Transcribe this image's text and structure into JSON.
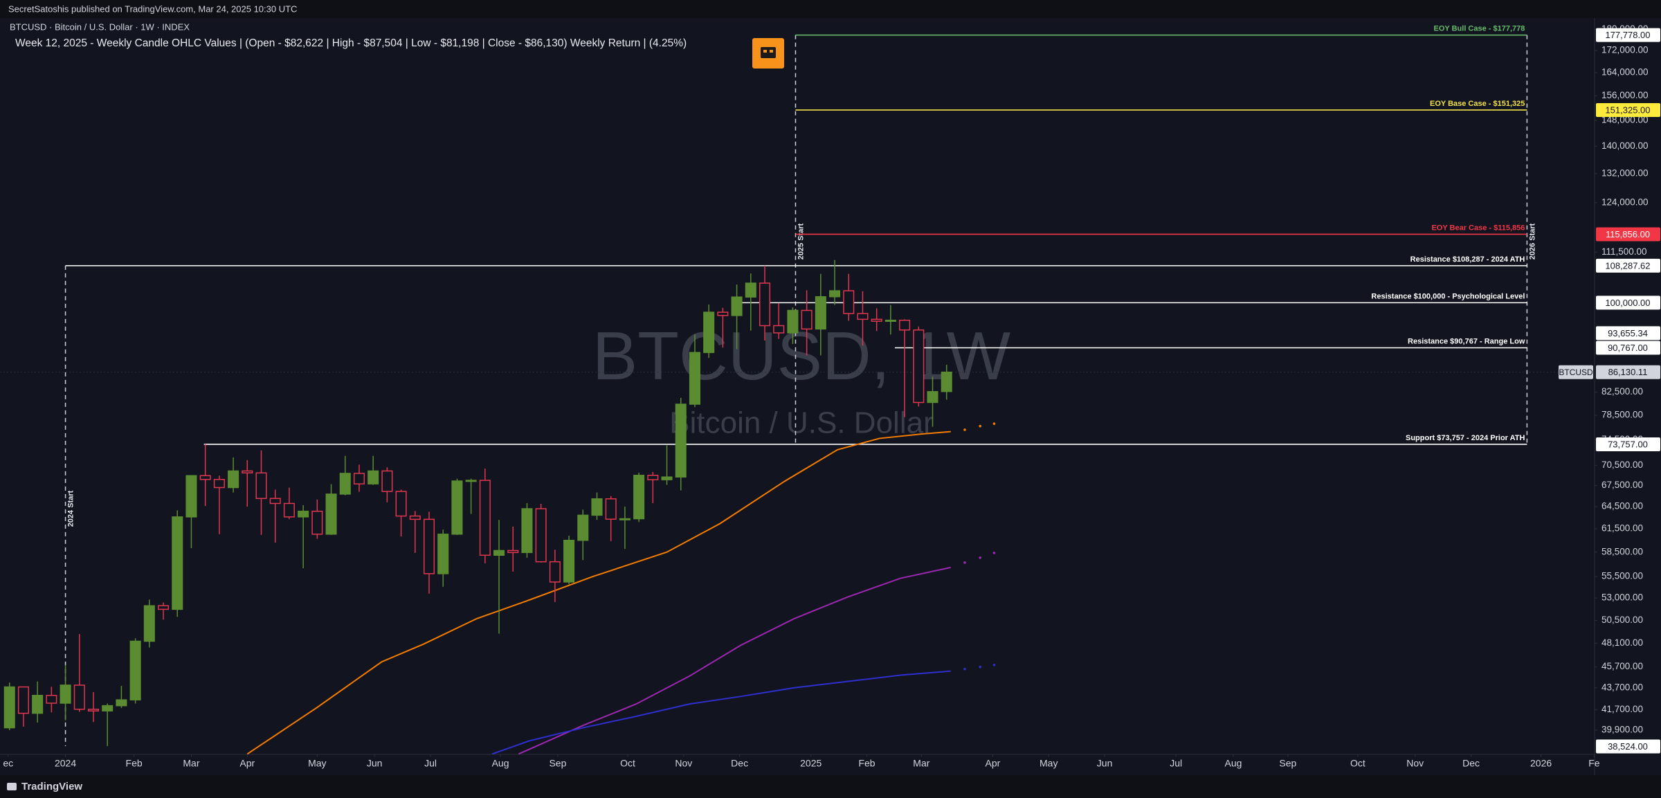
{
  "header": {
    "publisher": "SecretSatoshis published on TradingView.com, Mar 24, 2025 10:30 UTC",
    "symbol": "BTCUSD · Bitcoin / U.S. Dollar · 1W · INDEX"
  },
  "footer": {
    "brand": "TradingView"
  },
  "chart_data": {
    "type": "candlestick",
    "title": "Week 12, 2025 - Weekly Candle OHLC Values | (Open - $82,622 | High - $87,504 | Low - $81,198 | Close - $86,130) Weekly Return | (4.25%)",
    "watermark": "BTCUSD, 1W",
    "watermark_subtitle": "Bitcoin / U.S. Dollar",
    "up_color": "#5b8c32",
    "down_color": "#e0364f",
    "log_scale": true,
    "grid": false,
    "ohlc": {
      "open": [
        40100,
        43780,
        41370,
        42990,
        42280,
        43950,
        41730,
        41580,
        42050,
        42580,
        48300,
        52130,
        51730,
        63100,
        68950,
        68390,
        67210,
        69650,
        69360,
        65650,
        64950,
        63100,
        63870,
        60800,
        66270,
        69290,
        67740,
        69650,
        66650,
        63220,
        62770,
        55850,
        60800,
        68160,
        68260,
        58110,
        58700,
        58450,
        64220,
        57300,
        54860,
        60000,
        63330,
        65600,
        62790,
        62850,
        69000,
        68350,
        68750,
        80400,
        89850,
        97980,
        97290,
        101230,
        104300,
        95190,
        93720,
        98360,
        94510,
        101300,
        102600,
        97700,
        96500,
        96100,
        96300,
        94300,
        80700,
        82622
      ],
      "high": [
        44200,
        43800,
        44300,
        43800,
        45900,
        49050,
        43300,
        42250,
        43880,
        48600,
        52820,
        52500,
        64000,
        69000,
        73780,
        68950,
        71700,
        71300,
        72800,
        66900,
        67200,
        64700,
        65500,
        67700,
        71950,
        70600,
        71950,
        70200,
        66900,
        63900,
        63800,
        61400,
        68500,
        68500,
        70000,
        62700,
        61800,
        65000,
        64900,
        58800,
        60600,
        64100,
        66500,
        66000,
        64500,
        69400,
        69500,
        73600,
        81500,
        93400,
        99600,
        98900,
        104000,
        106500,
        108287,
        99900,
        99000,
        102700,
        106400,
        109600,
        106400,
        102500,
        98800,
        99500,
        96500,
        95000,
        85300,
        87504
      ],
      "low": [
        39900,
        40200,
        40550,
        41450,
        40750,
        41500,
        40600,
        38550,
        41850,
        42250,
        47650,
        50600,
        50900,
        59000,
        64600,
        60800,
        66500,
        64500,
        60700,
        59700,
        62800,
        56500,
        60200,
        60700,
        66100,
        66600,
        67600,
        65100,
        60500,
        58400,
        53500,
        54300,
        60700,
        63500,
        57100,
        49100,
        56100,
        57800,
        57200,
        52550,
        54600,
        57500,
        62700,
        59900,
        58900,
        62400,
        65000,
        67600,
        66800,
        79900,
        88800,
        90800,
        90500,
        94200,
        92200,
        92500,
        91500,
        89300,
        89300,
        99500,
        96200,
        91200,
        94100,
        93400,
        78200,
        80000,
        76600,
        81198
      ],
      "close": [
        43780,
        41370,
        42990,
        42280,
        43950,
        41730,
        41580,
        42050,
        42580,
        48300,
        52130,
        51730,
        63100,
        68950,
        68390,
        67210,
        69650,
        69360,
        65650,
        64950,
        63100,
        63870,
        60800,
        66270,
        69290,
        67740,
        69650,
        66650,
        63220,
        62770,
        55850,
        60800,
        68160,
        68260,
        58110,
        58700,
        58450,
        64220,
        57300,
        54860,
        60000,
        63330,
        65600,
        62790,
        62850,
        69000,
        68350,
        68750,
        80400,
        89850,
        97980,
        97290,
        101230,
        104300,
        95190,
        93720,
        98360,
        94510,
        101300,
        102600,
        97700,
        96500,
        96100,
        96300,
        94300,
        80700,
        82600,
        86130
      ]
    },
    "ylim": [
      37870,
      191700
    ],
    "yticks": [
      {
        "value": 180000,
        "label": "180,000.00"
      },
      {
        "value": 172000,
        "label": "172,000.00"
      },
      {
        "value": 164000,
        "label": "164,000.00"
      },
      {
        "value": 156000,
        "label": "156,000.00"
      },
      {
        "value": 148000,
        "label": "148,000.00"
      },
      {
        "value": 140000,
        "label": "140,000.00"
      },
      {
        "value": 132000,
        "label": "132,000.00"
      },
      {
        "value": 124000,
        "label": "124,000.00"
      },
      {
        "value": 111500,
        "label": "111,500.00"
      },
      {
        "value": 82500,
        "label": "82,500.00"
      },
      {
        "value": 78500,
        "label": "78,500.00"
      },
      {
        "value": 74500,
        "label": "74,500.00"
      },
      {
        "value": 70500,
        "label": "70,500.00"
      },
      {
        "value": 67500,
        "label": "67,500.00"
      },
      {
        "value": 64500,
        "label": "64,500.00"
      },
      {
        "value": 61500,
        "label": "61,500.00"
      },
      {
        "value": 58500,
        "label": "58,500.00"
      },
      {
        "value": 55500,
        "label": "55,500.00"
      },
      {
        "value": 53000,
        "label": "53,000.00"
      },
      {
        "value": 50500,
        "label": "50,500.00"
      },
      {
        "value": 48100,
        "label": "48,100.00"
      },
      {
        "value": 45700,
        "label": "45,700.00"
      },
      {
        "value": 43700,
        "label": "43,700.00"
      },
      {
        "value": 41700,
        "label": "41,700.00"
      },
      {
        "value": 39900,
        "label": "39,900.00"
      }
    ],
    "xlim": [
      -0.68,
      113.33
    ],
    "xticks": [
      {
        "value": -0.1,
        "label": "ec"
      },
      {
        "value": 4.0,
        "label": "2024"
      },
      {
        "value": 8.9,
        "label": "Feb"
      },
      {
        "value": 13.0,
        "label": "Mar"
      },
      {
        "value": 17.0,
        "label": "Apr"
      },
      {
        "value": 22.0,
        "label": "May"
      },
      {
        "value": 26.1,
        "label": "Jun"
      },
      {
        "value": 30.1,
        "label": "Jul"
      },
      {
        "value": 35.1,
        "label": "Aug"
      },
      {
        "value": 39.2,
        "label": "Sep"
      },
      {
        "value": 44.2,
        "label": "Oct"
      },
      {
        "value": 48.2,
        "label": "Nov"
      },
      {
        "value": 52.2,
        "label": "Dec"
      },
      {
        "value": 57.3,
        "label": "2025"
      },
      {
        "value": 61.3,
        "label": "Feb"
      },
      {
        "value": 65.2,
        "label": "Mar"
      },
      {
        "value": 70.3,
        "label": "Apr"
      },
      {
        "value": 74.3,
        "label": "May"
      },
      {
        "value": 78.3,
        "label": "Jun"
      },
      {
        "value": 83.4,
        "label": "Jul"
      },
      {
        "value": 87.5,
        "label": "Aug"
      },
      {
        "value": 91.4,
        "label": "Sep"
      },
      {
        "value": 96.4,
        "label": "Oct"
      },
      {
        "value": 100.5,
        "label": "Nov"
      },
      {
        "value": 104.5,
        "label": "Dec"
      },
      {
        "value": 109.5,
        "label": "2026"
      },
      {
        "value": 113.3,
        "label": "Fe"
      }
    ],
    "lines": [
      {
        "color": "#f57c00",
        "x": [
          17,
          22,
          26.6,
          29.6,
          33.4,
          37.2,
          41.7,
          47,
          50.8,
          55.4,
          59.2,
          62.2,
          65.2,
          67.3
        ],
        "values": [
          37900,
          41900,
          46200,
          48000,
          50700,
          52800,
          55500,
          58500,
          62200,
          68100,
          72900,
          74700,
          75400,
          75800
        ],
        "projection_x": [
          68.3,
          69.4,
          70.4
        ],
        "projection_values": [
          76100,
          76700,
          77100
        ]
      },
      {
        "color": "#9c27b0",
        "x": [
          36.4,
          41,
          44.8,
          48.6,
          52.3,
          56.1,
          59.9,
          63.7,
          67.3
        ],
        "values": [
          37900,
          40300,
          42200,
          44800,
          47900,
          50700,
          53100,
          55300,
          56600
        ],
        "projection_x": [
          68.3,
          69.4,
          70.4
        ],
        "projection_values": [
          57200,
          57800,
          58400
        ]
      },
      {
        "color": "#2f2fd0",
        "x": [
          34.5,
          37.2,
          41,
          44.8,
          48.6,
          52.3,
          56.1,
          59.9,
          63.7,
          67.3
        ],
        "values": [
          37900,
          39000,
          40100,
          41100,
          42200,
          42900,
          43700,
          44300,
          44900,
          45300
        ],
        "projection_x": [
          68.3,
          69.4,
          70.4
        ],
        "projection_values": [
          45500,
          45700,
          45900
        ]
      }
    ],
    "levels": [
      {
        "label": "EOY Bull Case - $177,778",
        "price": {
          "value": 177778,
          "label": "177,778.00"
        },
        "start": 56.2,
        "end": 108.5,
        "color": "#66bb6a",
        "tag_fill": "#ffffff",
        "tag_text": "#131722"
      },
      {
        "label": "EOY Base Case - $151,325",
        "price": {
          "value": 151325,
          "label": "151,325.00"
        },
        "start": 56.2,
        "end": 108.5,
        "color": "#f2e14c",
        "tag_fill": "#ffeb3b",
        "tag_text": "#131722"
      },
      {
        "label": "EOY Bear Case - $115,856",
        "price": {
          "value": 115856,
          "label": "115,856.00"
        },
        "start": 56.2,
        "end": 108.5,
        "color": "#f23645",
        "tag_fill": "#f23645",
        "tag_text": "#ffffff"
      },
      {
        "label": "Resistance $108,287 - 2024 ATH",
        "price": {
          "value": 108287.62,
          "label": "108,287.62"
        },
        "start": 4,
        "end": 108.5,
        "color": "#ffffff",
        "tag_fill": "#ffffff",
        "tag_text": "#131722"
      },
      {
        "label": "Resistance $100,000 - Psychological Level",
        "price": {
          "value": 100000,
          "label": "100,000.00"
        },
        "start": 52.1,
        "end": 108.5,
        "color": "#ffffff",
        "tag_fill": "#ffffff",
        "tag_text": "#131722"
      },
      {
        "label": "Resistance $90,767 - Range Low",
        "price": {
          "value": 90767,
          "label": "90,767.00"
        },
        "start": 63.3,
        "end": 108.5,
        "color": "#ffffff",
        "tag_fill": "#ffffff",
        "tag_text": "#131722"
      },
      {
        "label": "Support $73,757 - 2024 Prior ATH",
        "price": {
          "value": 73757,
          "label": "73,757.00"
        },
        "start": 13.9,
        "end": 108.5,
        "color": "#ffffff",
        "tag_fill": "#ffffff",
        "tag_text": "#131722"
      }
    ],
    "markers": [
      {
        "value": 93655.34,
        "label": "93,655.34"
      },
      {
        "value": 38524,
        "label": "38,524.00"
      }
    ],
    "last_price": {
      "symbol": "BTCUSD",
      "value": 86130.11,
      "label": "86,130.11"
    },
    "periods": [
      {
        "label": "2024 Start",
        "x": 4
      },
      {
        "label": "2025 Start",
        "x": 56.2
      },
      {
        "label": "2026 Start",
        "x": 108.5
      }
    ]
  }
}
